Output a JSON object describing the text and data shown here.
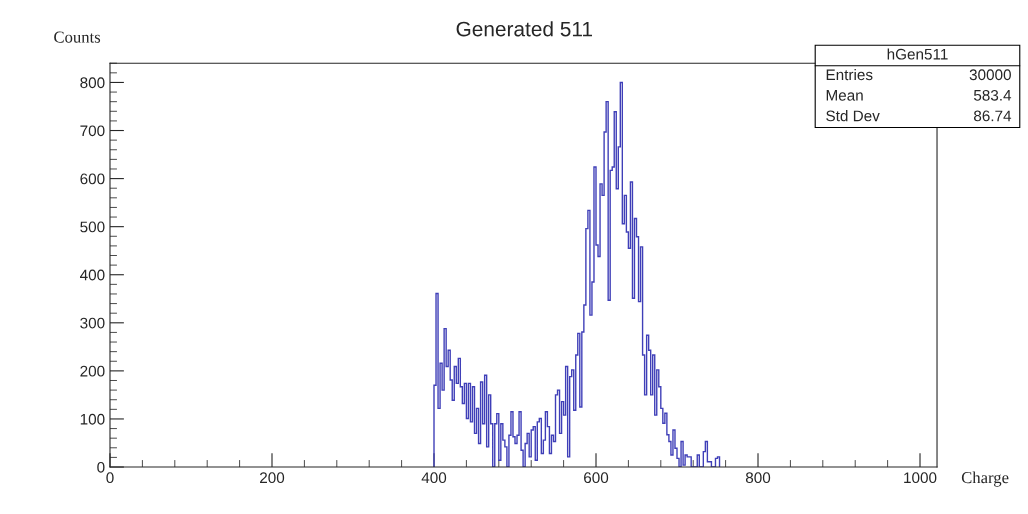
{
  "chart_data": {
    "type": "histogram",
    "title": "Generated 511",
    "xlabel": "Charge",
    "ylabel": "Counts",
    "color": "#3f3fb8",
    "bins": [
      400,
      402.5,
      405,
      407.5,
      410,
      412.5,
      415,
      417.5,
      420,
      422.5,
      425,
      427.5,
      430,
      432.5,
      435,
      437.5,
      440,
      442.5,
      445,
      447.5,
      450,
      452.5,
      455,
      457.5,
      460,
      462.5,
      465,
      467.5,
      470,
      472.5,
      475,
      477.5,
      480,
      482.5,
      485,
      487.5,
      490,
      492.5,
      495,
      497.5,
      500,
      502.5,
      505,
      507.5,
      510,
      512.5,
      515,
      517.5,
      520,
      522.5,
      525,
      527.5,
      530,
      532.5,
      535,
      537.5,
      540,
      542.5,
      545,
      547.5,
      550,
      552.5,
      555,
      557.5,
      560,
      562.5,
      565,
      567.5,
      570,
      572.5,
      575,
      577.5,
      580,
      582.5,
      585,
      587.5,
      590,
      592.5,
      595,
      597.5,
      600,
      602.5,
      605,
      607.5,
      610,
      612.5,
      615,
      617.5,
      620,
      622.5,
      625,
      627.5,
      630,
      632.5,
      635,
      637.5,
      640,
      642.5,
      645,
      647.5,
      650,
      652.5,
      655,
      657.5,
      660,
      662.5,
      665,
      667.5,
      670,
      672.5,
      675,
      677.5,
      680,
      682.5,
      685,
      687.5,
      690,
      692.5,
      695,
      697.5,
      700,
      702.5,
      705,
      707.5,
      710,
      712.5,
      715,
      717.5,
      720,
      722.5,
      725,
      727.5,
      730,
      732.5,
      735,
      737.5,
      740,
      742.5,
      745,
      747.5,
      750,
      752.5
    ],
    "values": [
      170,
      361,
      122,
      216,
      160,
      288,
      209,
      243,
      181,
      139,
      209,
      174,
      226,
      167,
      132,
      174,
      101,
      174,
      94,
      167,
      70,
      122,
      49,
      177,
      90,
      191,
      42,
      150,
      90,
      0,
      90,
      111,
      14,
      90,
      56,
      42,
      0,
      66,
      115,
      63,
      49,
      66,
      115,
      35,
      0,
      49,
      70,
      21,
      77,
      84,
      14,
      94,
      101,
      28,
      56,
      115,
      84,
      28,
      66,
      53,
      150,
      160,
      70,
      136,
      108,
      209,
      21,
      188,
      202,
      118,
      233,
      278,
      125,
      281,
      337,
      496,
      534,
      316,
      385,
      624,
      462,
      438,
      589,
      565,
      697,
      760,
      347,
      617,
      624,
      739,
      579,
      666,
      800,
      506,
      565,
      489,
      455,
      593,
      351,
      517,
      479,
      344,
      458,
      233,
      150,
      274,
      243,
      150,
      233,
      108,
      202,
      167,
      122,
      91,
      112,
      67,
      53,
      25,
      77,
      39,
      18,
      0,
      53,
      4,
      25,
      21,
      21,
      0,
      0,
      0,
      25,
      0,
      0,
      32,
      53,
      11,
      11,
      0,
      0,
      18,
      21
    ],
    "xlim": [
      0,
      1021
    ],
    "ylim": [
      0,
      840
    ],
    "xticks": [
      0,
      200,
      400,
      600,
      800,
      1000
    ],
    "yticks": [
      0,
      100,
      200,
      300,
      400,
      500,
      600,
      700,
      800
    ],
    "grid": false,
    "annotations": [
      "hGen511",
      "Entries",
      "30000",
      "Mean",
      "583.4",
      "Std Dev",
      "86.74"
    ]
  }
}
